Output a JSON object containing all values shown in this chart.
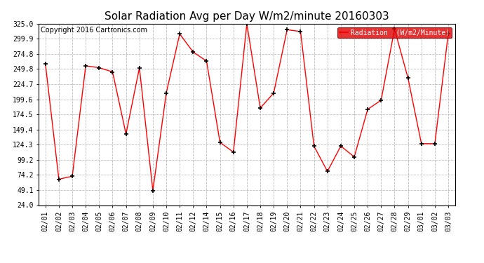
{
  "title": "Solar Radiation Avg per Day W/m2/minute 20160303",
  "copyright": "Copyright 2016 Cartronics.com",
  "legend_label": "Radiation  (W/m2/Minute)",
  "dates": [
    "02/01",
    "02/02",
    "02/03",
    "02/04",
    "02/05",
    "02/06",
    "02/07",
    "02/08",
    "02/09",
    "02/10",
    "02/11",
    "02/12",
    "02/14",
    "02/15",
    "02/16",
    "02/17",
    "02/18",
    "02/19",
    "02/20",
    "02/21",
    "02/22",
    "02/23",
    "02/24",
    "02/25",
    "02/26",
    "02/27",
    "02/28",
    "02/29",
    "03/01",
    "03/02",
    "03/03"
  ],
  "values": [
    258.0,
    67.0,
    72.0,
    255.0,
    252.0,
    245.0,
    142.0,
    252.0,
    48.0,
    210.0,
    308.0,
    278.0,
    263.0,
    128.0,
    112.0,
    325.0,
    185.0,
    210.0,
    315.0,
    312.0,
    122.0,
    80.0,
    122.0,
    104.0,
    183.0,
    198.0,
    316.0,
    235.0,
    126.0,
    126.0,
    308.0
  ],
  "ylim": [
    24.0,
    325.0
  ],
  "yticks": [
    24.0,
    49.1,
    74.2,
    99.2,
    124.3,
    149.4,
    174.5,
    199.6,
    224.7,
    249.8,
    274.8,
    299.9,
    325.0
  ],
  "line_color": "#ff0000",
  "marker": "+",
  "marker_color": "#000000",
  "bg_color": "#ffffff",
  "plot_bg_color": "#ffffff",
  "grid_color": "#bbbbbb",
  "legend_bg": "#dd0000",
  "legend_text_color": "#ffffff",
  "title_fontsize": 11,
  "axis_fontsize": 7,
  "copyright_fontsize": 7
}
